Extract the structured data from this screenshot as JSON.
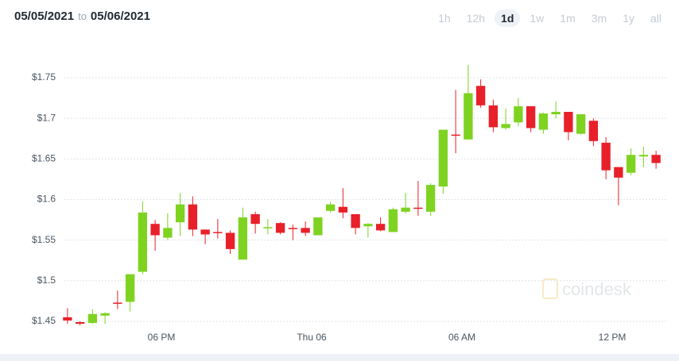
{
  "header": {
    "start_date": "05/05/2021",
    "separator": "to",
    "end_date": "05/06/2021",
    "ranges": [
      {
        "label": "1h",
        "active": false
      },
      {
        "label": "12h",
        "active": false
      },
      {
        "label": "1d",
        "active": true
      },
      {
        "label": "1w",
        "active": false
      },
      {
        "label": "1m",
        "active": false
      },
      {
        "label": "3m",
        "active": false
      },
      {
        "label": "1y",
        "active": false
      },
      {
        "label": "all",
        "active": false
      }
    ],
    "watermark": "coindesk"
  },
  "chart_data": {
    "type": "candlestick",
    "up_color": "#7ed321",
    "down_color": "#e8202a",
    "open": [
      1.455,
      1.449,
      1.448,
      1.457,
      1.473,
      1.474,
      1.511,
      1.57,
      1.553,
      1.572,
      1.594,
      1.563,
      1.56,
      1.559,
      1.526,
      1.582,
      1.565,
      1.571,
      1.565,
      1.565,
      1.556,
      1.586,
      1.591,
      1.582,
      1.567,
      1.57,
      1.56,
      1.585,
      1.59,
      1.585,
      1.616,
      1.68,
      1.674,
      1.74,
      1.716,
      1.688,
      1.695,
      1.715,
      1.686,
      1.705,
      1.708,
      1.681,
      1.697,
      1.67,
      1.64,
      1.633,
      1.653,
      1.655
    ],
    "high": [
      1.466,
      1.45,
      1.465,
      1.461,
      1.488,
      1.508,
      1.598,
      1.575,
      1.583,
      1.608,
      1.604,
      1.563,
      1.576,
      1.562,
      1.59,
      1.585,
      1.576,
      1.572,
      1.569,
      1.573,
      1.578,
      1.597,
      1.614,
      1.582,
      1.571,
      1.578,
      1.59,
      1.608,
      1.623,
      1.62,
      1.686,
      1.735,
      1.766,
      1.748,
      1.723,
      1.712,
      1.725,
      1.715,
      1.707,
      1.721,
      1.708,
      1.705,
      1.7,
      1.677,
      1.64,
      1.663,
      1.665,
      1.66
    ],
    "low": [
      1.447,
      1.445,
      1.447,
      1.447,
      1.465,
      1.462,
      1.508,
      1.537,
      1.55,
      1.555,
      1.555,
      1.545,
      1.552,
      1.533,
      1.526,
      1.558,
      1.557,
      1.557,
      1.55,
      1.555,
      1.556,
      1.584,
      1.577,
      1.557,
      1.553,
      1.561,
      1.56,
      1.583,
      1.58,
      1.58,
      1.607,
      1.657,
      1.674,
      1.713,
      1.683,
      1.686,
      1.69,
      1.683,
      1.681,
      1.7,
      1.673,
      1.68,
      1.666,
      1.625,
      1.593,
      1.63,
      1.64,
      1.638
    ],
    "close": [
      1.451,
      1.447,
      1.459,
      1.46,
      1.472,
      1.508,
      1.584,
      1.556,
      1.565,
      1.594,
      1.563,
      1.557,
      1.559,
      1.539,
      1.578,
      1.57,
      1.566,
      1.559,
      1.564,
      1.559,
      1.578,
      1.594,
      1.584,
      1.565,
      1.57,
      1.562,
      1.588,
      1.59,
      1.589,
      1.618,
      1.686,
      1.679,
      1.731,
      1.716,
      1.689,
      1.693,
      1.715,
      1.688,
      1.706,
      1.708,
      1.683,
      1.705,
      1.672,
      1.636,
      1.627,
      1.655,
      1.655,
      1.645
    ],
    "ylim": [
      1.44,
      1.785
    ],
    "yticks": [
      {
        "value": 1.45,
        "label": "$1.45"
      },
      {
        "value": 1.5,
        "label": "$1.5"
      },
      {
        "value": 1.55,
        "label": "$1.55"
      },
      {
        "value": 1.6,
        "label": "$1.6"
      },
      {
        "value": 1.65,
        "label": "$1.65"
      },
      {
        "value": 1.7,
        "label": "$1.7"
      },
      {
        "value": 1.75,
        "label": "$1.75"
      }
    ],
    "xlim": [
      -0.5,
      47.5
    ],
    "xticks": [
      {
        "value": 7.5,
        "label": "06 PM"
      },
      {
        "value": 19.5,
        "label": "Thu 06"
      },
      {
        "value": 31.5,
        "label": "06 AM"
      },
      {
        "value": 43.5,
        "label": "12 PM"
      }
    ],
    "grid": true
  }
}
